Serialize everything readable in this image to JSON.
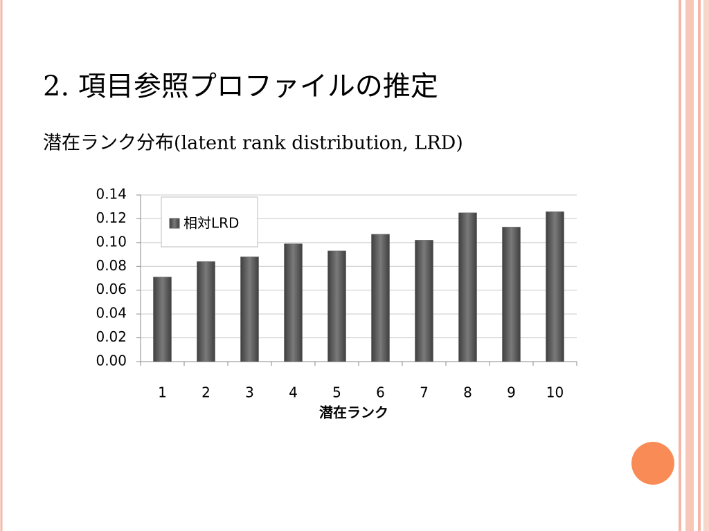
{
  "chart_data": {
    "type": "bar",
    "title": "2. 項目参照プロファイルの推定",
    "subtitle": "潜在ランク分布(latent rank distribution, LRD)",
    "x_label": "潜在ランク",
    "categories": [
      "1",
      "2",
      "3",
      "4",
      "5",
      "6",
      "7",
      "8",
      "9",
      "10"
    ],
    "series": [
      {
        "name": "相対LRD",
        "color": "#595959",
        "values": [
          0.071,
          0.084,
          0.088,
          0.099,
          0.093,
          0.107,
          0.102,
          0.125,
          0.113,
          0.126
        ]
      }
    ],
    "ylim": [
      0,
      0.14
    ],
    "yticks": [
      {
        "value": 0,
        "label": "0.00"
      },
      0.02,
      0.04,
      0.06,
      0.08,
      {
        "value": 0.1,
        "label": "0.10"
      },
      0.12,
      0.14
    ],
    "grid": true,
    "legend": "top-left"
  }
}
